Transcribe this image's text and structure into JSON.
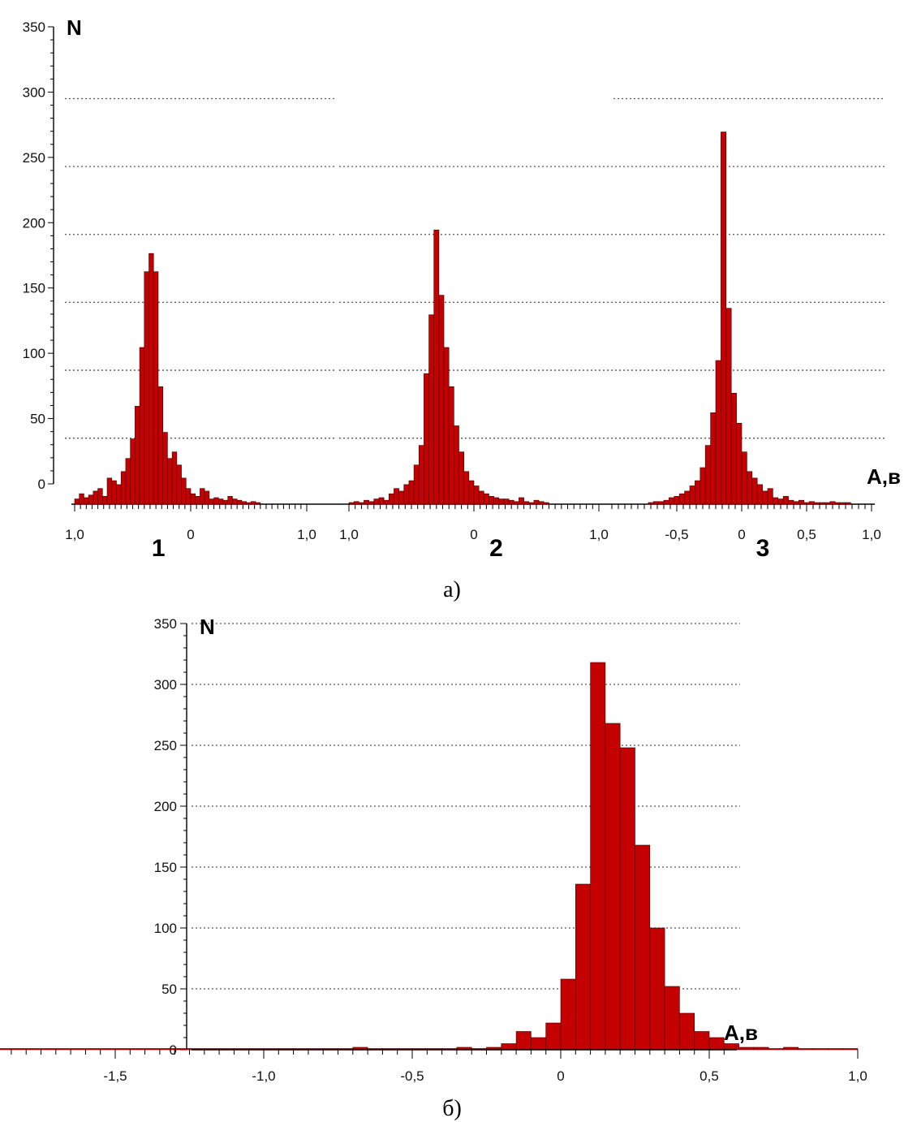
{
  "chart_data": [
    {
      "type": "bar",
      "caption": "а)",
      "ylabel": "N",
      "xlabel": "А,в",
      "ylim": [
        0,
        350
      ],
      "yticks": [
        0,
        50,
        100,
        150,
        200,
        250,
        300,
        350
      ],
      "grid": "dotted horizontal",
      "panels": [
        {
          "label": "1",
          "xlim": [
            -1.0,
            1.0
          ],
          "xtick_labels": [
            {
              "value": -1.0,
              "text": "1,0"
            },
            {
              "value": 0.0,
              "text": "0"
            },
            {
              "value": 1.0,
              "text": "1,0"
            }
          ],
          "bin_start": -1.0,
          "bin_width": 0.04,
          "values": [
            4,
            8,
            5,
            7,
            10,
            12,
            6,
            20,
            18,
            15,
            25,
            35,
            50,
            75,
            120,
            178,
            192,
            178,
            90,
            55,
            35,
            40,
            30,
            20,
            12,
            8,
            6,
            12,
            10,
            4,
            5,
            4,
            3,
            6,
            4,
            3,
            2,
            1,
            2,
            1
          ]
        },
        {
          "label": "2",
          "xlim": [
            -1.0,
            1.0
          ],
          "xtick_labels": [
            {
              "value": -1.0,
              "text": "1,0"
            },
            {
              "value": 0.0,
              "text": "0"
            },
            {
              "value": 1.0,
              "text": "1,0"
            }
          ],
          "bin_start": -1.0,
          "bin_width": 0.04,
          "values": [
            1,
            2,
            1,
            3,
            2,
            4,
            5,
            3,
            8,
            12,
            10,
            15,
            18,
            30,
            45,
            100,
            145,
            210,
            160,
            120,
            90,
            60,
            40,
            25,
            18,
            14,
            10,
            8,
            6,
            5,
            4,
            4,
            3,
            2,
            5,
            2,
            1,
            3,
            2,
            1
          ]
        },
        {
          "label": "3",
          "xlim": [
            -1.0,
            1.0
          ],
          "xtick_labels": [
            {
              "value": -0.5,
              "text": "-0,5"
            },
            {
              "value": 0.0,
              "text": "0"
            },
            {
              "value": 0.5,
              "text": "0,5"
            },
            {
              "value": 1.0,
              "text": "1,0"
            }
          ],
          "bin_start": -0.72,
          "bin_width": 0.04,
          "values": [
            1,
            2,
            2,
            3,
            5,
            6,
            8,
            10,
            14,
            18,
            28,
            45,
            70,
            110,
            285,
            150,
            85,
            62,
            40,
            25,
            20,
            15,
            10,
            12,
            5,
            4,
            6,
            3,
            2,
            3,
            1,
            2,
            1,
            1,
            1,
            2,
            1,
            1,
            1
          ]
        }
      ]
    },
    {
      "type": "bar",
      "caption": "б)",
      "ylabel": "N",
      "xlabel": "А,в",
      "ylim": [
        0,
        350
      ],
      "yticks": [
        0,
        50,
        100,
        150,
        200,
        250,
        300,
        350
      ],
      "xlim": [
        -2.5,
        1.15
      ],
      "xticks": [
        -2.0,
        -1.5,
        -1.0,
        -0.5,
        0.0,
        0.5,
        1.0
      ],
      "xtick_labels": [
        "-2,0",
        "-1,5",
        "-1,0",
        "-0,5",
        "0",
        "0,5",
        "1,0"
      ],
      "grid": "dotted horizontal",
      "bin_start": -2.45,
      "bin_width": 0.05,
      "values": [
        1,
        0,
        1,
        0,
        1,
        0,
        0,
        1,
        0,
        1,
        0,
        1,
        0,
        0,
        1,
        0,
        0,
        1,
        0,
        0,
        0,
        1,
        0,
        0,
        0,
        0,
        1,
        0,
        0,
        0,
        1,
        0,
        0,
        1,
        0,
        2,
        1,
        1,
        0,
        1,
        1,
        1,
        2,
        1,
        2,
        5,
        15,
        10,
        22,
        58,
        136,
        318,
        268,
        248,
        168,
        100,
        52,
        30,
        15,
        10,
        5,
        2,
        2,
        1,
        2,
        1,
        1,
        1,
        1
      ]
    }
  ]
}
